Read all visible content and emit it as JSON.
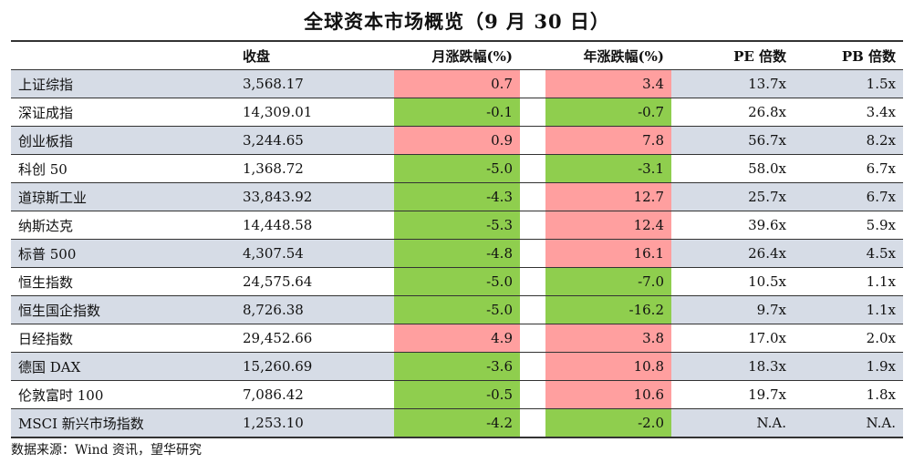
{
  "title": "全球资本市场概览（9 月 30 日）",
  "headers": [
    "",
    "收盘",
    "月涨跌幅(%)",
    "年涨跌幅(%)",
    "PE 倍数",
    "PB 倍数"
  ],
  "rows": [
    {
      "name": "上证综指",
      "close": "3,568.17",
      "month": "0.7",
      "year": "3.4",
      "pe": "13.7x",
      "pb": "1.5x",
      "month_dir": "pos",
      "year_dir": "pos"
    },
    {
      "name": "深证成指",
      "close": "14,309.01",
      "month": "-0.1",
      "year": "-0.7",
      "pe": "26.8x",
      "pb": "3.4x",
      "month_dir": "neg",
      "year_dir": "neg"
    },
    {
      "name": "创业板指",
      "close": "3,244.65",
      "month": "0.9",
      "year": "7.8",
      "pe": "56.7x",
      "pb": "8.2x",
      "month_dir": "pos",
      "year_dir": "pos"
    },
    {
      "name": "科创 50",
      "close": "1,368.72",
      "month": "-5.0",
      "year": "-3.1",
      "pe": "58.0x",
      "pb": "6.7x",
      "month_dir": "neg",
      "year_dir": "neg"
    },
    {
      "name": "道琼斯工业",
      "close": "33,843.92",
      "month": "-4.3",
      "year": "12.7",
      "pe": "25.7x",
      "pb": "6.7x",
      "month_dir": "neg",
      "year_dir": "pos"
    },
    {
      "name": "纳斯达克",
      "close": "14,448.58",
      "month": "-5.3",
      "year": "12.4",
      "pe": "39.6x",
      "pb": "5.9x",
      "month_dir": "neg",
      "year_dir": "pos"
    },
    {
      "name": "标普 500",
      "close": "4,307.54",
      "month": "-4.8",
      "year": "16.1",
      "pe": "26.4x",
      "pb": "4.5x",
      "month_dir": "neg",
      "year_dir": "pos"
    },
    {
      "name": "恒生指数",
      "close": "24,575.64",
      "month": "-5.0",
      "year": "-7.0",
      "pe": "10.5x",
      "pb": "1.1x",
      "month_dir": "neg",
      "year_dir": "neg"
    },
    {
      "name": "恒生国企指数",
      "close": "8,726.38",
      "month": "-5.0",
      "year": "-16.2",
      "pe": "9.7x",
      "pb": "1.1x",
      "month_dir": "neg",
      "year_dir": "neg"
    },
    {
      "name": "日经指数",
      "close": "29,452.66",
      "month": "4.9",
      "year": "3.8",
      "pe": "17.0x",
      "pb": "2.0x",
      "month_dir": "pos",
      "year_dir": "pos"
    },
    {
      "name": "德国 DAX",
      "close": "15,260.69",
      "month": "-3.6",
      "year": "10.8",
      "pe": "18.3x",
      "pb": "1.9x",
      "month_dir": "neg",
      "year_dir": "pos"
    },
    {
      "name": "伦敦富时 100",
      "close": "7,086.42",
      "month": "-0.5",
      "year": "10.6",
      "pe": "19.7x",
      "pb": "1.8x",
      "month_dir": "neg",
      "year_dir": "pos"
    },
    {
      "name": "MSCI 新兴市场指数",
      "close": "1,253.10",
      "month": "-4.2",
      "year": "-2.0",
      "pe": "N.A.",
      "pb": "N.A.",
      "month_dir": "neg",
      "year_dir": "neg"
    }
  ],
  "source": "数据来源：Wind 资讯，望华研究",
  "colors": {
    "up": "#ff9f9f",
    "down": "#8fce4e",
    "shade": "#d6dce6"
  }
}
